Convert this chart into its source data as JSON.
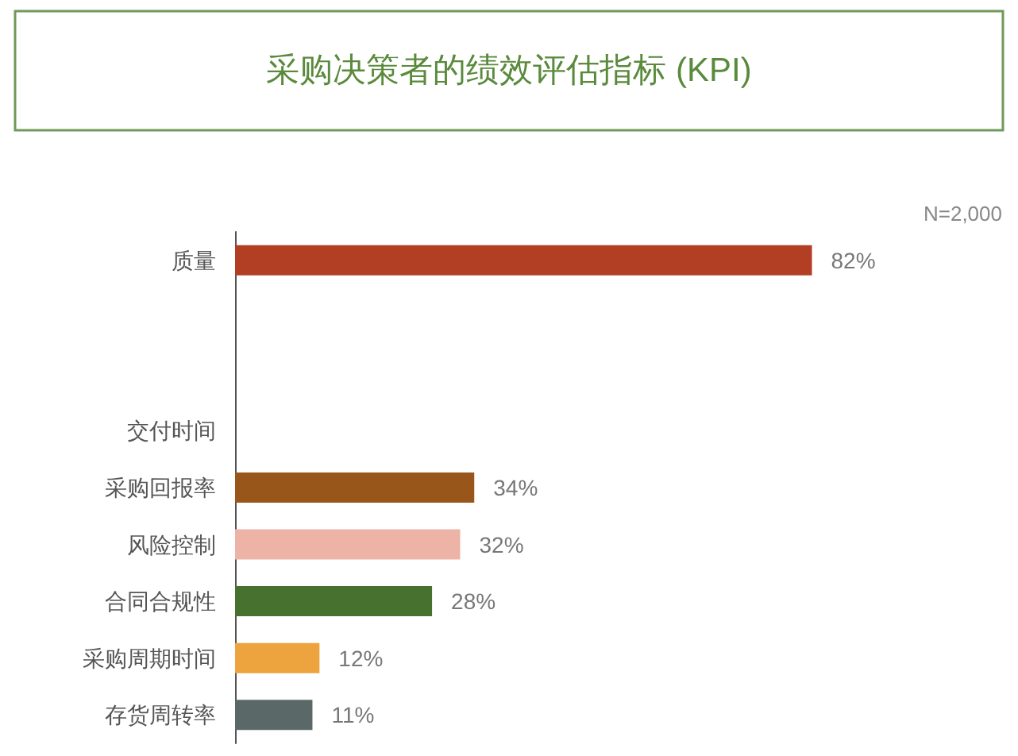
{
  "chart_data": {
    "type": "bar",
    "orientation": "horizontal",
    "title": "采购决策者的绩效评估指标 (KPI)",
    "annotations": [
      "N=2,000"
    ],
    "categories": [
      "质量",
      null,
      null,
      "交付时间",
      "采购回报率",
      "风险控制",
      "合同合规性",
      "采购周期时间",
      "存货周转率"
    ],
    "values": [
      82,
      null,
      null,
      null,
      34,
      32,
      28,
      12,
      11
    ],
    "colors": [
      "#b23f23",
      "#c0c0c0",
      "#c0c0c0",
      "#d08a70",
      "#98561a",
      "#edb3a7",
      "#46712f",
      "#eea43e",
      "#5a6968"
    ],
    "value_labels": [
      "82%",
      null,
      null,
      null,
      "34%",
      "32%",
      "28%",
      "12%",
      "11%"
    ],
    "tick_labels": "y"
  }
}
